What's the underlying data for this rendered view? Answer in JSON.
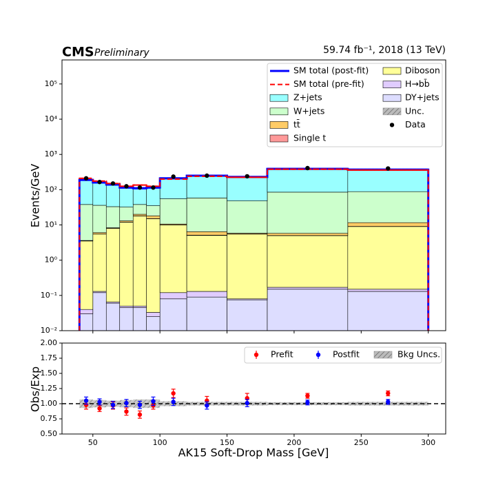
{
  "chart_data": [
    {
      "type": "histogram",
      "title": "CMS",
      "subtitle": "Preliminary",
      "lumi_label": "59.74 fb⁻¹, 2018 (13 TeV)",
      "ylabel": "Events/GeV",
      "log_y": true,
      "legend": "upper right",
      "bins": [
        40,
        50,
        60,
        70,
        80,
        90,
        100,
        120,
        150,
        180,
        240,
        300
      ],
      "xlim": [
        27,
        313
      ],
      "ylim": [
        0.01,
        480000
      ],
      "yticks": [
        {
          "value": 0.01,
          "label": "10⁻²"
        },
        {
          "value": 0.1,
          "label": "10⁻¹"
        },
        {
          "value": 1,
          "label": "10⁰"
        },
        {
          "value": 10,
          "label": "10¹"
        },
        {
          "value": 100,
          "label": "10²"
        },
        {
          "value": 1000,
          "label": "10³"
        },
        {
          "value": 10000,
          "label": "10⁴"
        },
        {
          "value": 100000,
          "label": "10⁵"
        }
      ],
      "lines": [
        {
          "name": "SM total (post-fit)",
          "color": "#0000ff",
          "style": "solid",
          "values": [
            190,
            160,
            140,
            115,
            110,
            115,
            210,
            250,
            230,
            390,
            370
          ]
        },
        {
          "name": "SM total (pre-fit)",
          "color": "#ff0000",
          "style": "dashed",
          "values": [
            210,
            175,
            150,
            125,
            135,
            125,
            200,
            240,
            225,
            380,
            360
          ]
        }
      ],
      "series": [
        {
          "name": "Z+jets",
          "color": "#99ffff",
          "values": [
            152,
            124,
            107,
            83,
            72,
            80,
            155,
            192,
            182,
            305,
            282
          ]
        },
        {
          "name": "W+jets",
          "color": "#ccffcc",
          "values": [
            34.4,
            30,
            24.7,
            19,
            18,
            17,
            44.5,
            51.7,
            42.2,
            79.4,
            76.5
          ]
        },
        {
          "name": "tt̄",
          "color": "#ffcc66",
          "values": [
            0.1,
            0.5,
            0.3,
            1,
            2,
            3,
            0.5,
            1.3,
            0.3,
            0.75,
            2.5
          ]
        },
        {
          "name": "Single t",
          "color": "#ff9999",
          "values": [
            0.02,
            0.05,
            0.05,
            0.1,
            0.1,
            0.1,
            0.1,
            0.1,
            0.05,
            0.05,
            0.1
          ]
        },
        {
          "name": "Diboson",
          "color": "#ffff99",
          "values": [
            3.46,
            5.37,
            7.9,
            11.9,
            17.9,
            15,
            9.9,
            4.9,
            5.4,
            4.8,
            8.85
          ]
        },
        {
          "name": "H→bb̄",
          "color": "#e0ccff",
          "values": [
            0.01,
            0.01,
            0.005,
            0.005,
            0.005,
            0.008,
            0.04,
            0.04,
            0.005,
            0.02,
            0.02
          ]
        },
        {
          "name": "DY+jets",
          "color": "#ddddff",
          "values": [
            0.03,
            0.12,
            0.06,
            0.045,
            0.045,
            0.025,
            0.08,
            0.09,
            0.075,
            0.15,
            0.13
          ]
        }
      ],
      "uncertainty": {
        "name": "Unc.",
        "color": "#999999"
      },
      "data": {
        "name": "Data",
        "color": "#000000",
        "x": [
          45,
          55,
          65,
          75,
          85,
          95,
          110,
          135,
          165,
          210,
          270
        ],
        "values": [
          210,
          165,
          150,
          125,
          115,
          115,
          235,
          250,
          240,
          410,
          400
        ]
      }
    },
    {
      "type": "errorbar",
      "ylabel": "Obs/Exp",
      "xlabel": "AK15 Soft-Drop Mass [GeV]",
      "legend": "upper right",
      "xlim": [
        27,
        313
      ],
      "xticks": [
        50,
        100,
        150,
        200,
        250,
        300
      ],
      "ylim": [
        0.5,
        2
      ],
      "yticks": [
        {
          "value": 0.5,
          "label": "0.50"
        },
        {
          "value": 0.75,
          "label": "0.75"
        },
        {
          "value": 1,
          "label": "1.00"
        },
        {
          "value": 1.25,
          "label": "1.25"
        },
        {
          "value": 1.5,
          "label": "1.50"
        },
        {
          "value": 1.75,
          "label": "1.75"
        },
        {
          "value": 2,
          "label": "2.00"
        }
      ],
      "reference_line": 1,
      "series": [
        {
          "name": "Prefit",
          "color": "#ff0000",
          "x": [
            45,
            55,
            65,
            75,
            85,
            95,
            110,
            135,
            165,
            210,
            270
          ],
          "values": [
            0.98,
            0.92,
            0.97,
            0.87,
            0.82,
            0.97,
            1.17,
            1.05,
            1.09,
            1.13,
            1.17
          ],
          "errors": [
            0.07,
            0.05,
            0.06,
            0.06,
            0.06,
            0.06,
            0.07,
            0.07,
            0.08,
            0.04,
            0.04
          ]
        },
        {
          "name": "Postfit",
          "color": "#0000ff",
          "x": [
            45,
            55,
            65,
            75,
            85,
            95,
            110,
            135,
            165,
            210,
            270
          ],
          "values": [
            1.05,
            1.03,
            0.98,
            1.01,
            0.98,
            1.04,
            1.03,
            0.97,
            1.01,
            1.02,
            1.03
          ],
          "errors": [
            0.06,
            0.05,
            0.06,
            0.06,
            0.06,
            0.07,
            0.06,
            0.06,
            0.06,
            0.04,
            0.04
          ]
        }
      ],
      "band": {
        "name": "Bkg Uncs.",
        "color": "#999999",
        "center": 1,
        "errors": [
          0.07,
          0.06,
          0.05,
          0.06,
          0.07,
          0.07,
          0.04,
          0.03,
          0.03,
          0.025,
          0.03
        ]
      }
    }
  ]
}
